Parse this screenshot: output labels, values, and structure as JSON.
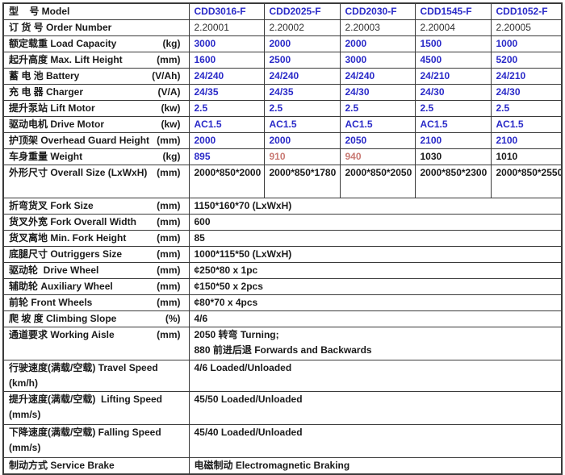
{
  "colors": {
    "value_blue": "#2a2ac8",
    "weight_highlight": "#c97a74",
    "text_black": "#1a1a1a",
    "border": "#3a3a3a"
  },
  "table": {
    "rows": [
      {
        "label": "型    号 Model",
        "unit": "",
        "values": [
          "CDD3016-F",
          "CDD2025-F",
          "CDD2030-F",
          "CDD1545-F",
          "CDD1052-F"
        ]
      },
      {
        "label": "订 货 号 Order Number",
        "unit": "",
        "values": [
          "2.20001",
          "2.20002",
          "2.20003",
          "2.20004",
          "2.20005"
        ]
      },
      {
        "label": "额定载重 Load Capacity",
        "unit": "(kg)",
        "values": [
          "3000",
          "2000",
          "2000",
          "1500",
          "1000"
        ]
      },
      {
        "label": "起升高度 Max. Lift Height",
        "unit": "(mm)",
        "values": [
          "1600",
          "2500",
          "3000",
          "4500",
          "5200"
        ]
      },
      {
        "label": "蓄 电 池 Battery",
        "unit": "(V/Ah)",
        "values": [
          "24/240",
          "24/240",
          "24/240",
          "24/210",
          "24/210"
        ]
      },
      {
        "label": "充 电 器 Charger",
        "unit": "(V/A)",
        "values": [
          "24/35",
          "24/35",
          "24/30",
          "24/30",
          "24/30"
        ]
      },
      {
        "label": "提升泵站 Lift Motor",
        "unit": "(kw)",
        "values": [
          "2.5",
          "2.5",
          "2.5",
          "2.5",
          "2.5"
        ]
      },
      {
        "label": "驱动电机 Drive Motor",
        "unit": "(kw)",
        "values": [
          "AC1.5",
          "AC1.5",
          "AC1.5",
          "AC1.5",
          "AC1.5"
        ]
      },
      {
        "label": "护顶架 Overhead Guard Height",
        "unit": "(mm)",
        "values": [
          "2000",
          "2000",
          "2050",
          "2100",
          "2100"
        ]
      },
      {
        "label": "车身重量 Weight",
        "unit": "(kg)",
        "values": [
          "895",
          "910",
          "940",
          "1030",
          "1010"
        ]
      },
      {
        "label": "外形尺寸 Overall Size (LxWxH)",
        "unit": "(mm)",
        "values": [
          "2000*850*2000",
          "2000*850*1780",
          "2000*850*2050",
          "2000*850*2300",
          "2000*850*2550"
        ]
      },
      {
        "label": "折弯货叉 Fork Size",
        "unit": "(mm)",
        "value": "1150*160*70 (LxWxH)"
      },
      {
        "label": "货叉外宽 Fork Overall Width",
        "unit": "(mm)",
        "value": "600"
      },
      {
        "label": "货叉离地 Min. Fork Height",
        "unit": "(mm)",
        "value": "85"
      },
      {
        "label": "底腿尺寸 Outriggers Size",
        "unit": "(mm)",
        "value": "1000*115*50 (LxWxH)"
      },
      {
        "label": "驱动轮  Drive Wheel",
        "unit": "(mm)",
        "value": "¢250*80 x 1pc"
      },
      {
        "label": "辅助轮 Auxiliary Wheel",
        "unit": "(mm)",
        "value": "¢150*50 x 2pcs"
      },
      {
        "label": "前轮 Front Wheels",
        "unit": "(mm)",
        "value": "¢80*70 x 4pcs"
      },
      {
        "label": "爬 坡 度 Climbing Slope",
        "unit": "(%)",
        "value": "4/6"
      },
      {
        "label": "通道要求 Working Aisle",
        "unit": "(mm)",
        "value_lines": [
          "2050 转弯 Turning;",
          "880 前进后退 Forwards and Backwards"
        ]
      },
      {
        "label": "行驶速度(满载/空载) Travel Speed (km/h)",
        "unit": "",
        "value": "4/6 Loaded/Unloaded"
      },
      {
        "label": "提升速度(满载/空载)  Lifting Speed",
        "label_line2": "(mm/s)",
        "unit": "",
        "value": "45/50 Loaded/Unloaded"
      },
      {
        "label": "下降速度(满载/空载) Falling Speed",
        "label_line2": "(mm/s)",
        "unit": "",
        "value": "45/40 Loaded/Unloaded"
      },
      {
        "label": "制动方式 Service Brake",
        "unit": "",
        "value": "电磁制动 Electromagnetic Braking"
      }
    ]
  }
}
